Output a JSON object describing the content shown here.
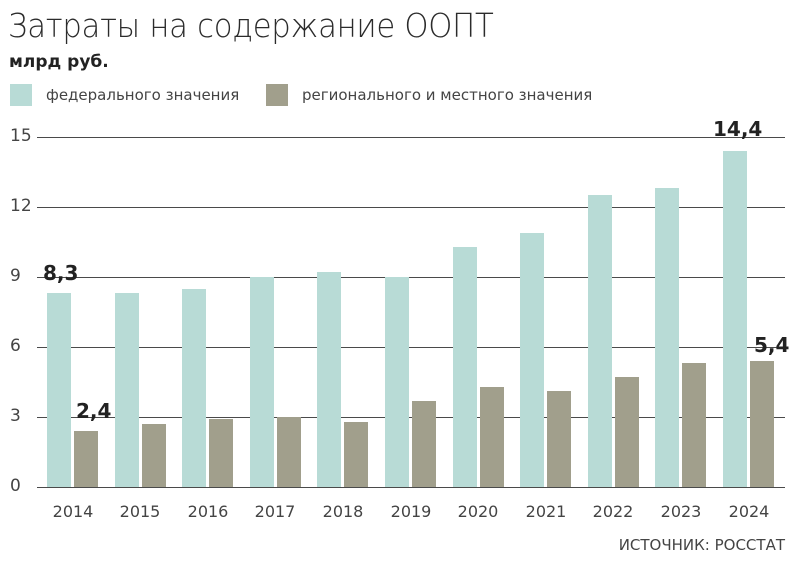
{
  "header": {
    "title": "Затраты на содержание ООПТ",
    "unit": "млрд руб."
  },
  "legend": [
    {
      "label": "федерального значения",
      "color": "#b8dbd6"
    },
    {
      "label": "регионального и местного значения",
      "color": "#a19f8c"
    }
  ],
  "yaxis": {
    "ticks": [
      "0",
      "3",
      "6",
      "9",
      "12",
      "15"
    ]
  },
  "xaxis": {
    "ticks": [
      "2014",
      "2015",
      "2016",
      "2017",
      "2018",
      "2019",
      "2020",
      "2021",
      "2022",
      "2023",
      "2024"
    ]
  },
  "annotations": {
    "fed_2014": "8,3",
    "reg_2014": "2,4",
    "fed_2024": "14,4",
    "reg_2024": "5,4"
  },
  "footer": {
    "source": "ИСТОЧНИК: РОССТАТ"
  },
  "chart_data": {
    "type": "bar",
    "title": "Затраты на содержание ООПТ",
    "subtitle": "млрд руб.",
    "xlabel": "",
    "ylabel": "млрд руб.",
    "ylim": [
      0,
      15
    ],
    "yticks": [
      0,
      3,
      6,
      9,
      12,
      15
    ],
    "grid": true,
    "legend_position": "top",
    "categories": [
      "2014",
      "2015",
      "2016",
      "2017",
      "2018",
      "2019",
      "2020",
      "2021",
      "2022",
      "2023",
      "2024"
    ],
    "series": [
      {
        "name": "федерального значения",
        "color": "#b8dbd6",
        "values": [
          8.3,
          8.3,
          8.5,
          9.0,
          9.2,
          9.0,
          10.3,
          10.9,
          12.5,
          12.8,
          14.4
        ]
      },
      {
        "name": "регионального и местного значения",
        "color": "#a19f8c",
        "values": [
          2.4,
          2.7,
          2.9,
          3.0,
          2.8,
          3.7,
          4.3,
          4.1,
          4.7,
          5.3,
          5.4
        ]
      }
    ],
    "annotations": [
      {
        "category": "2014",
        "series": 0,
        "text": "8,3"
      },
      {
        "category": "2014",
        "series": 1,
        "text": "2,4"
      },
      {
        "category": "2024",
        "series": 0,
        "text": "14,4"
      },
      {
        "category": "2024",
        "series": 1,
        "text": "5,4"
      }
    ],
    "source": "ИСТОЧНИК: РОССТАТ"
  }
}
